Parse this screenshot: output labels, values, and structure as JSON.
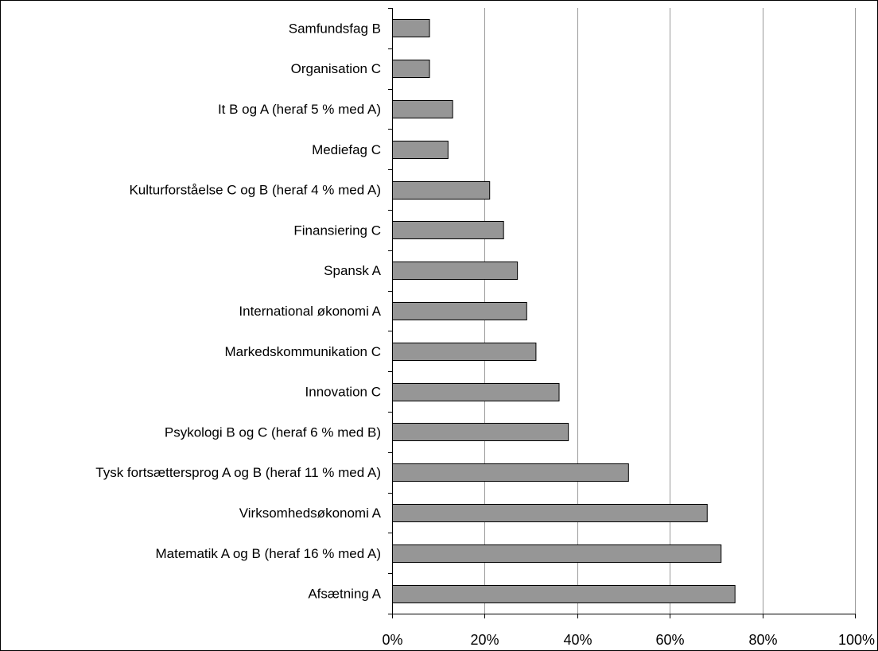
{
  "chart_data": {
    "type": "bar",
    "orientation": "horizontal",
    "categories": [
      "Samfundsfag B",
      "Organisation C",
      "It B og A (heraf 5 % med A)",
      "Mediefag C",
      "Kulturforståelse C og B (heraf 4 % med A)",
      "Finansiering C",
      "Spansk A",
      "International økonomi A",
      "Markedskommunikation C",
      "Innovation C",
      "Psykologi B og C (heraf 6 % med B)",
      "Tysk fortsættersprog A og B (heraf 11 % med A)",
      "Virksomhedsøkonomi A",
      "Matematik A og B (heraf 16 % med A)",
      "Afsætning A"
    ],
    "values": [
      8,
      8,
      13,
      12,
      21,
      24,
      27,
      29,
      31,
      36,
      38,
      51,
      68,
      71,
      74
    ],
    "xlim": [
      0,
      100
    ],
    "x_ticks": [
      "0%",
      "20%",
      "40%",
      "60%",
      "80%",
      "100%"
    ],
    "x_tick_values": [
      0,
      20,
      40,
      60,
      80,
      100
    ],
    "grid": "vertical",
    "legend": "none",
    "title": "",
    "xlabel": "",
    "ylabel": ""
  },
  "colors": {
    "bar_fill": "#969696",
    "bar_stroke": "#000000",
    "grid": "#999999",
    "axis": "#000000",
    "background": "#ffffff"
  }
}
